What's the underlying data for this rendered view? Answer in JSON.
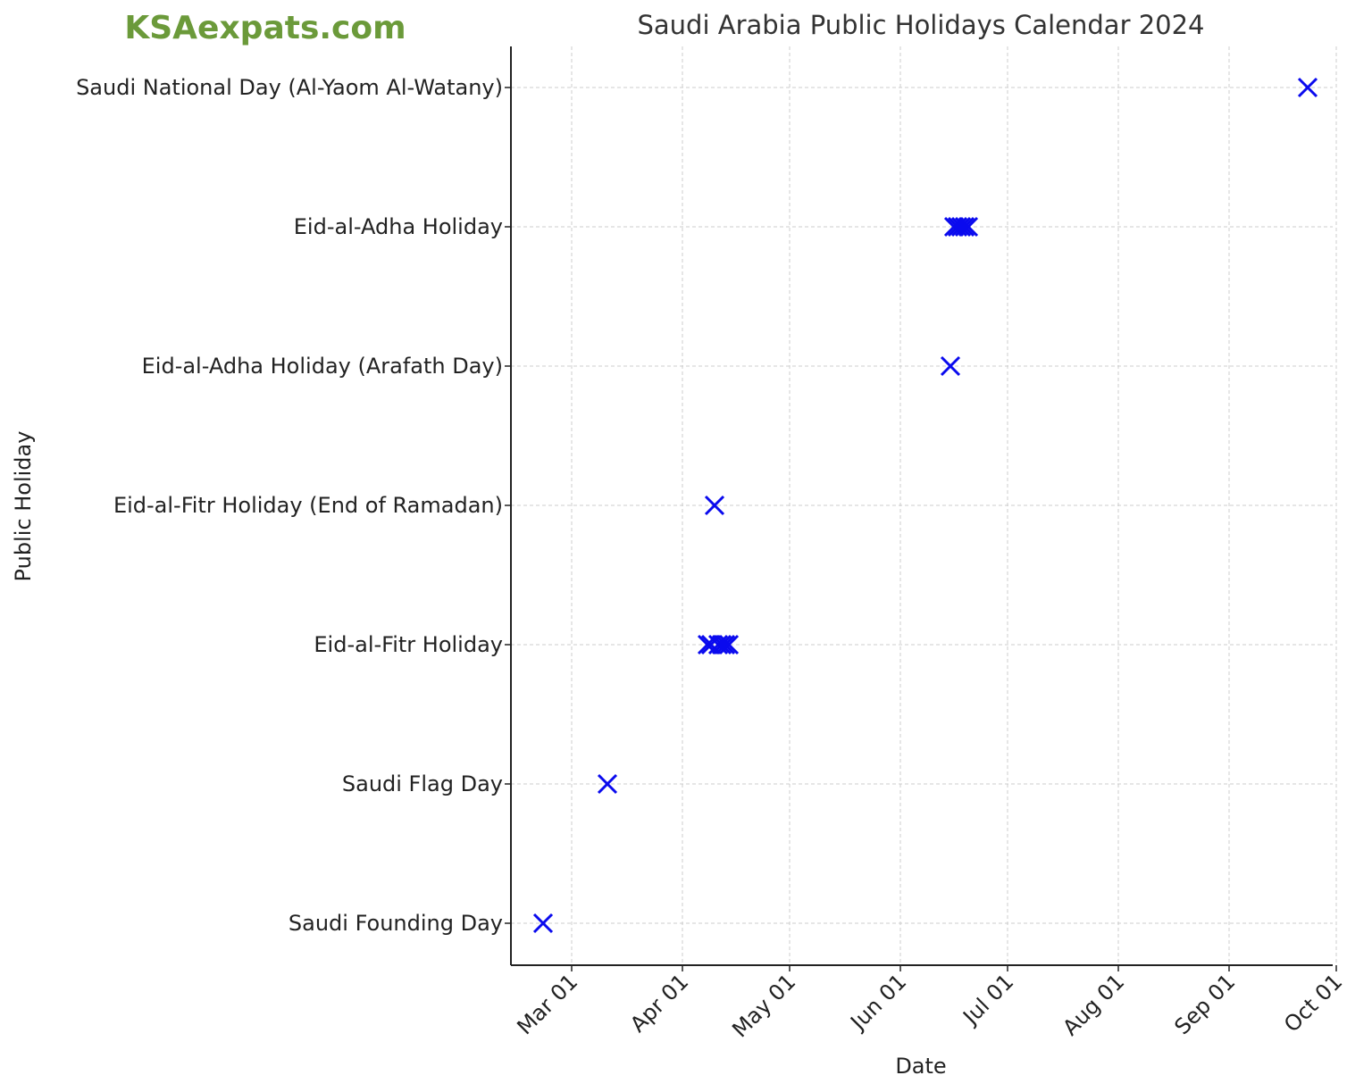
{
  "watermark": "KSAexpats.com",
  "chart_data": {
    "type": "scatter",
    "title": "Saudi Arabia Public Holidays Calendar 2024",
    "xlabel": "Date",
    "ylabel": "Public Holiday",
    "x_axis_type": "date",
    "xlim": [
      "2024-02-13",
      "2024-09-30"
    ],
    "x_ticks": [
      "2024-03-01",
      "2024-04-01",
      "2024-05-01",
      "2024-06-01",
      "2024-07-01",
      "2024-08-01",
      "2024-09-01",
      "2024-10-01"
    ],
    "x_tick_labels": [
      "Mar 01",
      "Apr 01",
      "May 01",
      "Jun 01",
      "Jul 01",
      "Aug 01",
      "Sep 01",
      "Oct 01"
    ],
    "categories": [
      "Saudi Founding Day",
      "Saudi Flag Day",
      "Eid-al-Fitr Holiday",
      "Eid-al-Fitr Holiday (End of Ramadan)",
      "Eid-al-Adha Holiday (Arafath Day)",
      "Eid-al-Adha Holiday",
      "Saudi National Day (Al-Yaom Al-Watany)"
    ],
    "marker": "x",
    "marker_color": "#0a0aee",
    "grid": true,
    "points": [
      {
        "date": "2024-02-22",
        "holiday": "Saudi Founding Day"
      },
      {
        "date": "2024-03-11",
        "holiday": "Saudi Flag Day"
      },
      {
        "date": "2024-04-08",
        "holiday": "Eid-al-Fitr Holiday"
      },
      {
        "date": "2024-04-09",
        "holiday": "Eid-al-Fitr Holiday"
      },
      {
        "date": "2024-04-11",
        "holiday": "Eid-al-Fitr Holiday"
      },
      {
        "date": "2024-04-12",
        "holiday": "Eid-al-Fitr Holiday"
      },
      {
        "date": "2024-04-13",
        "holiday": "Eid-al-Fitr Holiday"
      },
      {
        "date": "2024-04-14",
        "holiday": "Eid-al-Fitr Holiday"
      },
      {
        "date": "2024-04-10",
        "holiday": "Eid-al-Fitr Holiday (End of Ramadan)"
      },
      {
        "date": "2024-06-15",
        "holiday": "Eid-al-Adha Holiday (Arafath Day)"
      },
      {
        "date": "2024-06-16",
        "holiday": "Eid-al-Adha Holiday"
      },
      {
        "date": "2024-06-17",
        "holiday": "Eid-al-Adha Holiday"
      },
      {
        "date": "2024-06-18",
        "holiday": "Eid-al-Adha Holiday"
      },
      {
        "date": "2024-06-19",
        "holiday": "Eid-al-Adha Holiday"
      },
      {
        "date": "2024-06-20",
        "holiday": "Eid-al-Adha Holiday"
      },
      {
        "date": "2024-09-23",
        "holiday": "Saudi National Day (Al-Yaom Al-Watany)"
      }
    ]
  }
}
